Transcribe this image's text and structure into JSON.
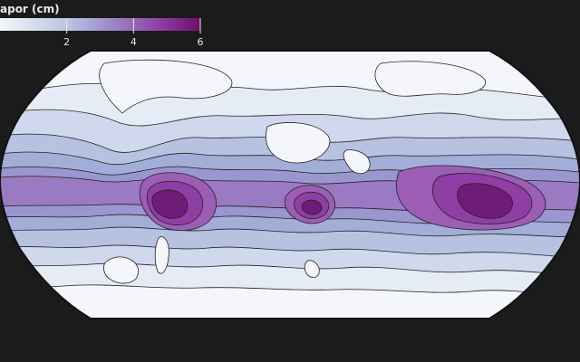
{
  "legend": {
    "title": "apor (cm)",
    "ticks": [
      {
        "value": 2,
        "label": "2"
      },
      {
        "value": 4,
        "label": "4"
      },
      {
        "value": 6,
        "label": "6"
      }
    ],
    "range": [
      0,
      6
    ],
    "color_low": "#f4f6fb",
    "color_high": "#6a0f6a"
  },
  "map": {
    "background": "#1b1b1b",
    "ocean_fill": "#f4f6fb",
    "contour_stroke": "#222222",
    "projection": "equal-earth-like",
    "bands": [
      {
        "level": 0.5,
        "color": "#e6ecf6"
      },
      {
        "level": 1.0,
        "color": "#cfd8ec"
      },
      {
        "level": 1.5,
        "color": "#b7c2e1"
      },
      {
        "level": 2.0,
        "color": "#a3aed8"
      },
      {
        "level": 2.5,
        "color": "#9a96cf"
      },
      {
        "level": 3.0,
        "color": "#9a7bc3"
      },
      {
        "level": 3.5,
        "color": "#9b5eb4"
      },
      {
        "level": 4.0,
        "color": "#8f3ea3"
      },
      {
        "level": 5.0,
        "color": "#6f1b78"
      }
    ]
  }
}
